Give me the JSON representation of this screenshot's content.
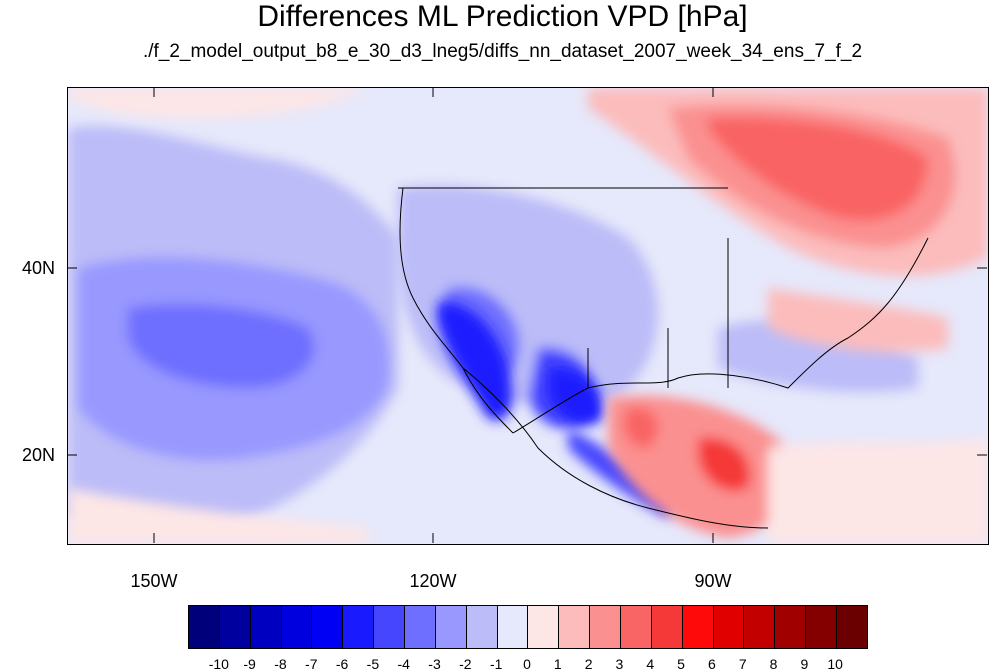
{
  "title": "Differences ML Prediction VPD [hPa]",
  "subtitle": "./f_2_model_output_b8_e_30_d3_lneg5/diffs_nn_dataset_2007_week_34_ens_7_f_2",
  "map": {
    "lat_labels": [
      "40N",
      "20N"
    ],
    "lon_labels": [
      "150W",
      "120W",
      "90W"
    ]
  },
  "colorbar": {
    "labels": [
      "-10",
      "-9",
      "-8",
      "-7",
      "-6",
      "-5",
      "-4",
      "-3",
      "-2",
      "-1",
      "0",
      "1",
      "2",
      "3",
      "4",
      "5",
      "6",
      "7",
      "8",
      "9",
      "10"
    ],
    "colors": [
      "#00007a",
      "#00009e",
      "#0000c0",
      "#0000de",
      "#0000f4",
      "#1a1aff",
      "#4646ff",
      "#6e6eff",
      "#9898ff",
      "#bcbcf8",
      "#e6e8fb",
      "#fde6e6",
      "#fcbcbc",
      "#fb9090",
      "#f96464",
      "#f53838",
      "#ff0a0a",
      "#e00000",
      "#c20000",
      "#a00000",
      "#840000",
      "#6a0000"
    ]
  }
}
